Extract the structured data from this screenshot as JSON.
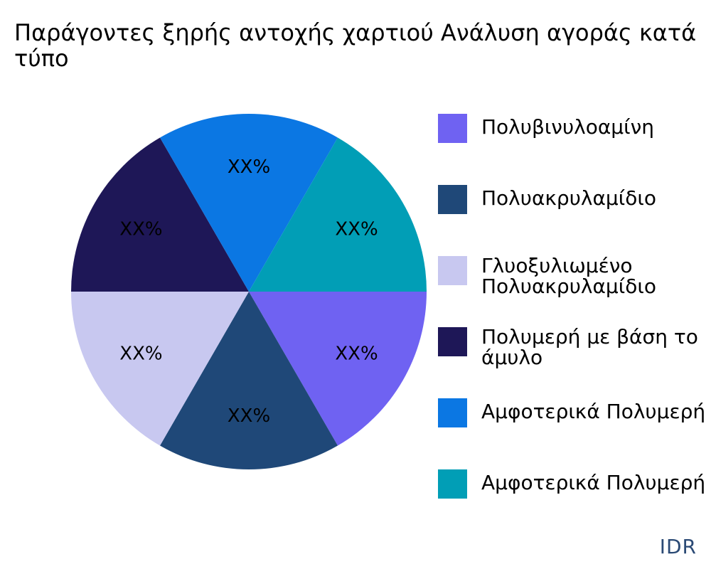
{
  "chart_data": {
    "type": "pie",
    "title_lines": [
      "Παράγοντες ξηρής αντοχής χαρτιού Ανάλυση αγοράς κατά",
      "τύπο"
    ],
    "slices": [
      {
        "legend_lines": [
          "Πολυβινυλοαμίνη"
        ],
        "value": 16.67,
        "label": "XX%",
        "color": "#6f62f2"
      },
      {
        "legend_lines": [
          "Πολυακρυλαμίδιο"
        ],
        "value": 16.67,
        "label": "XX%",
        "color": "#1f4878"
      },
      {
        "legend_lines": [
          "Γλυοξυλιωμένο",
          "Πολυακρυλαμίδιο"
        ],
        "value": 16.67,
        "label": "XX%",
        "color": "#c8c8f0"
      },
      {
        "legend_lines": [
          "Πολυμερή με βάση το",
          "άμυλο"
        ],
        "value": 16.67,
        "label": "XX%",
        "color": "#1e1757"
      },
      {
        "legend_lines": [
          "Αμφοτερικά Πολυμερή"
        ],
        "value": 16.67,
        "label": "XX%",
        "color": "#0b77e3"
      },
      {
        "legend_lines": [
          "Αμφοτερικά Πολυμερή"
        ],
        "value": 16.67,
        "label": "XX%",
        "color": "#019eb6"
      }
    ],
    "start_angle_deg": 0,
    "direction": "clockwise",
    "legend_position": "right"
  },
  "brand": {
    "text": "IDR",
    "color": "#2b4a75"
  }
}
